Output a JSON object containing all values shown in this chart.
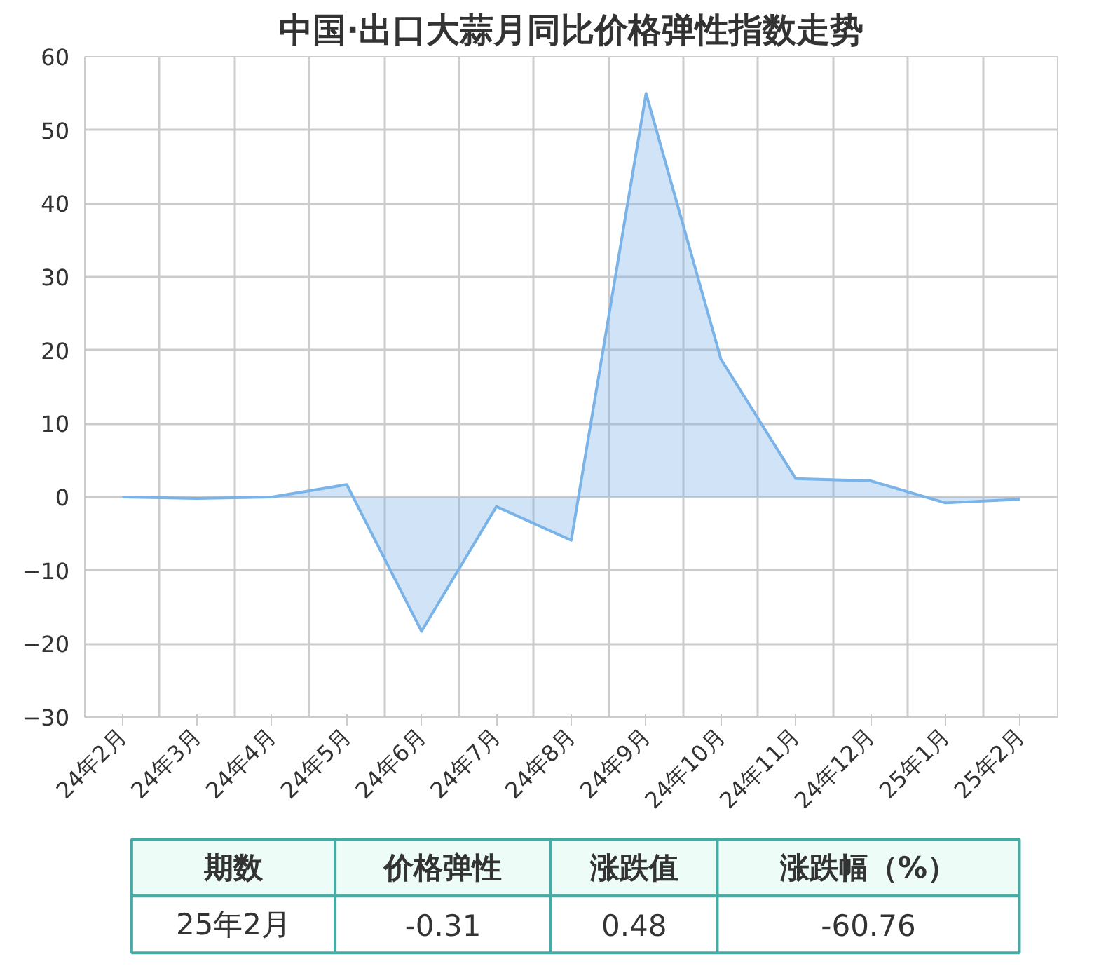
{
  "chart_data": {
    "type": "area",
    "title": "中国·出口大蒜月同比价格弹性指数走势",
    "categories": [
      "24年2月",
      "24年3月",
      "24年4月",
      "24年5月",
      "24年6月",
      "24年7月",
      "24年8月",
      "24年9月",
      "24年10月",
      "24年11月",
      "24年12月",
      "25年1月",
      "25年2月"
    ],
    "series": [
      {
        "color": "#7ab3e8",
        "values": [
          0,
          -0.2,
          0,
          1.7,
          -18.3,
          -1.3,
          -5.9,
          55,
          18.8,
          2.5,
          2.2,
          -0.8,
          -0.3
        ]
      }
    ],
    "ylim": [
      -30,
      60
    ],
    "yticks": [
      -30,
      -20,
      -10,
      0,
      10,
      20,
      30,
      40,
      50,
      60
    ],
    "grid": true,
    "annotations": [
      "期数",
      "价格弹性",
      "涨跌值",
      "涨跌幅（%）",
      "25年2月",
      "-0.31",
      "0.48",
      "-60.76"
    ]
  }
}
